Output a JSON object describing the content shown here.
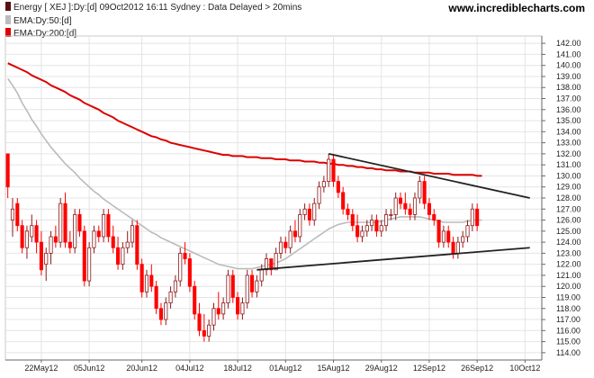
{
  "legend": {
    "main": "Energy [ XEJ ]:Dy:[d]  09Oct2012 16:11 Sydney : Data Delayed > 20mins",
    "ema50": "EMA:Dy:50:[d]",
    "ema200": "EMA:Dy:200:[d]"
  },
  "brand": "www.incrediblecharts.com",
  "colors": {
    "up": "#ffffff",
    "down": "#ff0000",
    "candle_outline_up": "#8b1a1a",
    "ema50": "#bbbbbb",
    "ema200": "#dd0000",
    "trendline": "#222222",
    "grid": "#e4e4e4"
  },
  "chart_data": {
    "type": "candlestick",
    "title": "Energy [ XEJ ]:Dy:[d]",
    "ylim": [
      113.5,
      142.5
    ],
    "yticks": [
      "114.00",
      "115.00",
      "116.00",
      "117.00",
      "118.00",
      "119.00",
      "120.00",
      "121.00",
      "122.00",
      "123.00",
      "124.00",
      "125.00",
      "126.00",
      "127.00",
      "128.00",
      "129.00",
      "130.00",
      "131.00",
      "132.00",
      "133.00",
      "134.00",
      "135.00",
      "136.00",
      "137.00",
      "138.00",
      "139.00",
      "140.00",
      "141.00",
      "142.00"
    ],
    "xticks": [
      {
        "label": "22May12",
        "i": 7
      },
      {
        "label": "05Jun12",
        "i": 17
      },
      {
        "label": "20Jun12",
        "i": 28
      },
      {
        "label": "04Jul12",
        "i": 38
      },
      {
        "label": "18Jul12",
        "i": 48
      },
      {
        "label": "01Aug12",
        "i": 58
      },
      {
        "label": "15Aug12",
        "i": 68
      },
      {
        "label": "29Aug12",
        "i": 78
      },
      {
        "label": "12Sep12",
        "i": 88
      },
      {
        "label": "26Sep12",
        "i": 98
      },
      {
        "label": "10Oct12",
        "i": 108
      }
    ],
    "candles": [
      [
        132.0,
        132.0,
        128.0,
        129.0
      ],
      [
        126.0,
        128.0,
        124.5,
        127.0
      ],
      [
        127.5,
        128.0,
        125.0,
        125.5
      ],
      [
        125.5,
        126.0,
        123.0,
        123.5
      ],
      [
        123.5,
        125.5,
        122.5,
        125.0
      ],
      [
        124.5,
        126.5,
        124.0,
        125.5
      ],
      [
        125.5,
        126.0,
        123.0,
        124.0
      ],
      [
        124.0,
        125.0,
        121.0,
        121.5
      ],
      [
        122.0,
        123.5,
        120.5,
        123.0
      ],
      [
        123.0,
        125.0,
        122.0,
        124.5
      ],
      [
        124.5,
        125.5,
        123.5,
        124.0
      ],
      [
        124.0,
        128.0,
        123.5,
        127.5
      ],
      [
        127.5,
        128.5,
        123.5,
        124.0
      ],
      [
        124.0,
        125.0,
        123.0,
        123.5
      ],
      [
        123.5,
        127.0,
        123.0,
        126.5
      ],
      [
        126.5,
        127.0,
        124.5,
        125.0
      ],
      [
        125.0,
        125.5,
        120.0,
        120.5
      ],
      [
        120.5,
        124.0,
        120.0,
        123.5
      ],
      [
        123.5,
        125.5,
        123.0,
        125.0
      ],
      [
        125.0,
        125.5,
        124.0,
        124.5
      ],
      [
        124.5,
        127.0,
        124.0,
        126.5
      ],
      [
        126.5,
        127.0,
        124.0,
        124.5
      ],
      [
        124.5,
        125.5,
        123.0,
        123.5
      ],
      [
        123.5,
        124.5,
        121.5,
        122.0
      ],
      [
        122.0,
        124.0,
        121.5,
        123.5
      ],
      [
        123.5,
        125.0,
        123.0,
        124.0
      ],
      [
        124.0,
        126.0,
        123.5,
        125.5
      ],
      [
        125.5,
        126.0,
        121.5,
        122.0
      ],
      [
        122.0,
        122.5,
        119.0,
        119.5
      ],
      [
        119.5,
        121.5,
        119.0,
        121.0
      ],
      [
        121.0,
        122.0,
        119.5,
        120.0
      ],
      [
        120.0,
        120.5,
        117.5,
        118.0
      ],
      [
        118.0,
        118.5,
        116.5,
        117.0
      ],
      [
        117.0,
        119.0,
        116.5,
        118.5
      ],
      [
        118.5,
        120.0,
        118.0,
        119.5
      ],
      [
        119.5,
        121.0,
        119.0,
        120.5
      ],
      [
        120.5,
        123.5,
        120.0,
        123.0
      ],
      [
        123.0,
        124.0,
        122.0,
        122.5
      ],
      [
        122.5,
        123.0,
        119.5,
        120.0
      ],
      [
        120.0,
        120.5,
        117.0,
        117.5
      ],
      [
        117.5,
        118.5,
        115.5,
        116.0
      ],
      [
        116.0,
        117.5,
        115.0,
        115.5
      ],
      [
        115.5,
        117.0,
        115.0,
        116.5
      ],
      [
        116.5,
        118.5,
        116.0,
        118.0
      ],
      [
        118.0,
        119.5,
        117.0,
        117.5
      ],
      [
        117.5,
        119.0,
        117.0,
        118.5
      ],
      [
        118.5,
        121.5,
        118.0,
        121.0
      ],
      [
        121.0,
        121.5,
        118.5,
        119.0
      ],
      [
        119.0,
        119.5,
        117.0,
        117.5
      ],
      [
        117.5,
        119.0,
        117.0,
        118.5
      ],
      [
        118.5,
        121.5,
        118.0,
        121.0
      ],
      [
        121.0,
        121.5,
        119.0,
        119.5
      ],
      [
        119.5,
        121.0,
        119.0,
        120.5
      ],
      [
        120.5,
        122.0,
        120.0,
        121.5
      ],
      [
        121.5,
        123.0,
        121.0,
        122.5
      ],
      [
        122.5,
        122.5,
        121.0,
        121.5
      ],
      [
        121.5,
        123.5,
        121.5,
        123.0
      ],
      [
        123.0,
        124.5,
        122.5,
        124.0
      ],
      [
        124.0,
        124.5,
        123.0,
        123.5
      ],
      [
        123.5,
        125.5,
        123.0,
        125.0
      ],
      [
        125.0,
        126.0,
        124.0,
        124.5
      ],
      [
        124.5,
        127.0,
        124.0,
        126.5
      ],
      [
        126.5,
        127.5,
        126.0,
        127.0
      ],
      [
        127.0,
        127.5,
        125.5,
        126.0
      ],
      [
        126.0,
        128.0,
        125.5,
        127.5
      ],
      [
        127.5,
        129.5,
        127.0,
        129.0
      ],
      [
        129.0,
        130.0,
        128.5,
        129.5
      ],
      [
        129.5,
        132.0,
        129.0,
        131.5
      ],
      [
        131.5,
        132.0,
        129.0,
        129.5
      ],
      [
        129.5,
        130.0,
        128.0,
        128.5
      ],
      [
        128.5,
        129.0,
        126.5,
        127.0
      ],
      [
        127.0,
        127.5,
        126.0,
        126.5
      ],
      [
        126.5,
        127.0,
        125.0,
        125.5
      ],
      [
        125.5,
        126.5,
        124.0,
        124.5
      ],
      [
        124.5,
        125.5,
        124.0,
        125.0
      ],
      [
        125.0,
        126.0,
        124.5,
        125.5
      ],
      [
        125.5,
        126.5,
        125.0,
        126.0
      ],
      [
        126.0,
        126.5,
        124.5,
        125.0
      ],
      [
        125.0,
        126.0,
        124.5,
        125.5
      ],
      [
        125.5,
        127.0,
        125.0,
        126.5
      ],
      [
        126.5,
        127.0,
        126.0,
        126.5
      ],
      [
        126.5,
        128.5,
        126.0,
        128.0
      ],
      [
        128.0,
        128.5,
        127.0,
        127.5
      ],
      [
        127.5,
        128.5,
        126.5,
        127.0
      ],
      [
        127.0,
        127.5,
        126.0,
        126.5
      ],
      [
        126.5,
        128.5,
        126.0,
        128.0
      ],
      [
        128.0,
        130.0,
        127.5,
        129.5
      ],
      [
        129.5,
        130.0,
        127.0,
        127.5
      ],
      [
        127.5,
        128.0,
        126.0,
        126.5
      ],
      [
        126.5,
        127.0,
        125.5,
        126.0
      ],
      [
        126.0,
        126.0,
        123.5,
        124.0
      ],
      [
        124.0,
        125.5,
        123.5,
        125.0
      ],
      [
        125.0,
        125.5,
        123.5,
        124.0
      ],
      [
        124.0,
        124.5,
        122.5,
        123.0
      ],
      [
        123.0,
        124.5,
        122.5,
        124.0
      ],
      [
        124.0,
        125.0,
        123.5,
        124.5
      ],
      [
        124.5,
        126.0,
        124.0,
        125.5
      ],
      [
        125.5,
        127.5,
        125.0,
        127.0
      ],
      [
        127.0,
        127.5,
        125.0,
        125.5
      ]
    ],
    "ema50": [
      138.8,
      138.2,
      137.5,
      136.6,
      135.9,
      135.1,
      134.5,
      133.8,
      133.2,
      132.6,
      132.1,
      131.6,
      131.1,
      130.7,
      130.3,
      129.8,
      129.4,
      129.0,
      128.6,
      128.3,
      127.9,
      127.6,
      127.3,
      127.0,
      126.7,
      126.4,
      126.1,
      125.8,
      125.5,
      125.2,
      124.9,
      124.7,
      124.4,
      124.2,
      124.0,
      123.8,
      123.6,
      123.4,
      123.2,
      123.0,
      122.8,
      122.6,
      122.4,
      122.2,
      122.0,
      121.9,
      121.8,
      121.7,
      121.6,
      121.6,
      121.6,
      121.6,
      121.7,
      121.8,
      121.9,
      122.0,
      122.1,
      122.3,
      122.5,
      122.8,
      123.1,
      123.4,
      123.7,
      124.0,
      124.3,
      124.6,
      124.9,
      125.2,
      125.4,
      125.6,
      125.7,
      125.8,
      125.8,
      125.8,
      125.8,
      125.8,
      125.8,
      125.8,
      125.9,
      126.0,
      126.1,
      126.2,
      126.3,
      126.3,
      126.3,
      126.3,
      126.3,
      126.2,
      126.1,
      126.0,
      125.9,
      125.8,
      125.8,
      125.8,
      125.8,
      125.8,
      125.9,
      126.0,
      126.0,
      126.0
    ],
    "ema200": [
      140.2,
      140.0,
      139.8,
      139.6,
      139.4,
      139.1,
      138.9,
      138.7,
      138.5,
      138.2,
      138.0,
      137.8,
      137.6,
      137.3,
      137.1,
      136.9,
      136.6,
      136.4,
      136.2,
      136.0,
      135.7,
      135.5,
      135.3,
      135.0,
      134.8,
      134.6,
      134.4,
      134.2,
      134.0,
      133.8,
      133.6,
      133.5,
      133.3,
      133.2,
      133.0,
      132.9,
      132.8,
      132.7,
      132.6,
      132.5,
      132.4,
      132.3,
      132.2,
      132.1,
      132.0,
      131.9,
      131.9,
      131.8,
      131.8,
      131.8,
      131.7,
      131.7,
      131.7,
      131.6,
      131.6,
      131.6,
      131.5,
      131.5,
      131.5,
      131.4,
      131.4,
      131.4,
      131.3,
      131.3,
      131.3,
      131.2,
      131.2,
      131.1,
      131.1,
      131.0,
      131.0,
      130.9,
      130.9,
      130.8,
      130.8,
      130.7,
      130.7,
      130.6,
      130.6,
      130.5,
      130.5,
      130.5,
      130.4,
      130.4,
      130.4,
      130.3,
      130.3,
      130.3,
      130.3,
      130.2,
      130.2,
      130.2,
      130.2,
      130.1,
      130.1,
      130.1,
      130.1,
      130.1,
      130.0,
      130.0
    ],
    "trendlines": [
      {
        "from": [
          67,
          132.0
        ],
        "to": [
          109,
          128.0
        ]
      },
      {
        "from": [
          52,
          121.5
        ],
        "to": [
          109,
          123.5
        ]
      }
    ]
  }
}
